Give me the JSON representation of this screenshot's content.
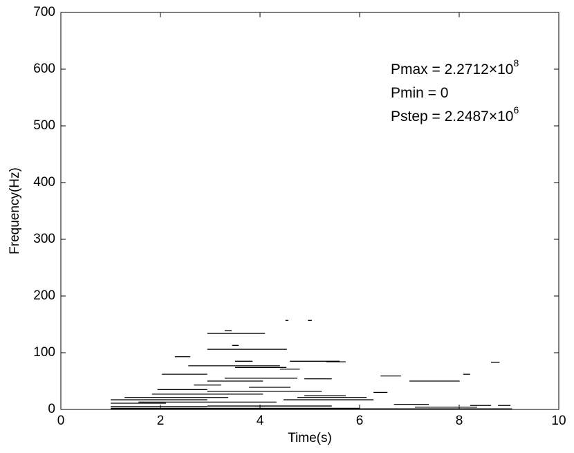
{
  "chart_data": {
    "type": "segments",
    "xlabel": "Time(s)",
    "ylabel": "Frequency(Hz)",
    "xlim": [
      0,
      10
    ],
    "xticks": [
      0,
      2,
      4,
      6,
      8,
      10
    ],
    "ylim": [
      0,
      700
    ],
    "yticks": [
      0,
      100,
      200,
      300,
      400,
      500,
      600,
      700
    ],
    "color": "#000000",
    "annotations": [
      {
        "text": "Pmax = 2.2712×10",
        "sup": "8"
      },
      {
        "text": "Pmin = 0"
      },
      {
        "text": "Pstep = 2.2487×10",
        "sup": "6"
      }
    ],
    "x_start": [
      4.51,
      4.96,
      2.94,
      3.29,
      3.44,
      2.94,
      2.29,
      3.5,
      4.6,
      8.64,
      2.56,
      5.33,
      3.5,
      4.4,
      2.03,
      8.08,
      6.42,
      3.29,
      2.94,
      7.0,
      4.89,
      2.67,
      3.78,
      1.94,
      2.94,
      6.28,
      1.83,
      4.89,
      1.28,
      4.75,
      1.0,
      4.47,
      1.56,
      1.0,
      6.69,
      8.22,
      2.94,
      1.0,
      7.11,
      1.0,
      1.0,
      1.83,
      8.78
    ],
    "x_end": [
      4.57,
      5.04,
      4.1,
      3.43,
      3.57,
      4.54,
      2.6,
      3.85,
      5.6,
      8.81,
      4.4,
      5.72,
      4.53,
      4.8,
      2.94,
      8.22,
      6.83,
      4.75,
      4.06,
      8.01,
      5.44,
      3.22,
      4.61,
      2.94,
      5.24,
      6.56,
      4.06,
      5.72,
      3.36,
      6.14,
      2.94,
      6.28,
      4.33,
      2.11,
      7.39,
      8.64,
      5.44,
      2.94,
      8.36,
      6.0,
      9.06,
      7.11,
      9.03
    ],
    "y": [
      157,
      157,
      134,
      139,
      113,
      106,
      93,
      85,
      85,
      83,
      77,
      84,
      74,
      71,
      62,
      62,
      59,
      55,
      50,
      50,
      54,
      43,
      39,
      35,
      32,
      30,
      27,
      24,
      21,
      21,
      17,
      17,
      13,
      11,
      9,
      7,
      6,
      5,
      4,
      2,
      1,
      0.5,
      7
    ]
  }
}
